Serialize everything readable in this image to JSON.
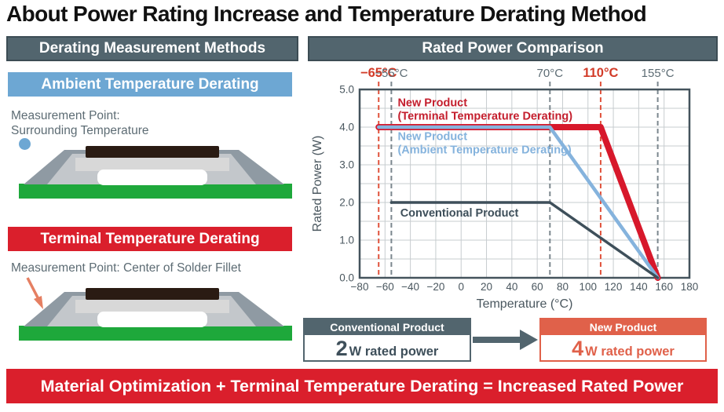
{
  "page_title": "About Power Rating Increase and Temperature Derating Method",
  "left_panel": {
    "header": "Derating Measurement Methods",
    "ambient_header": "Ambient Temperature Derating",
    "ambient_measurement_line1": "Measurement Point:",
    "ambient_measurement_line2": "Surrounding Temperature",
    "terminal_header": "Terminal Temperature Derating",
    "terminal_measurement": "Measurement Point: Center of Solder Fillet"
  },
  "right_panel": {
    "header": "Rated Power Comparison"
  },
  "chart_data": {
    "type": "line",
    "title": "Rated Power Comparison",
    "xlabel": "Temperature (°C)",
    "ylabel": "Rated Power (W)",
    "xlim": [
      -80,
      180
    ],
    "ylim": [
      0,
      5.0
    ],
    "grid": true,
    "x_ticks": [
      -80,
      -60,
      -40,
      -20,
      0,
      20,
      40,
      60,
      80,
      100,
      120,
      140,
      160,
      180
    ],
    "y_ticks": [
      0,
      1,
      2,
      3,
      4,
      5
    ],
    "y_tick_labels": [
      "0.0",
      "1.0",
      "2.0",
      "3.0",
      "4.0",
      "5.0"
    ],
    "x_grid_step": 20,
    "y_grid_step": 0.5,
    "reference_lines": [
      {
        "x": -65,
        "label": "−65°C",
        "label_color": "#d23b28",
        "line_color": "#e0523c",
        "bold": true
      },
      {
        "x": -55,
        "label": "−55°C",
        "label_color": "#5d6c74",
        "line_color": "#7b878e",
        "bold": false
      },
      {
        "x": 70,
        "label": "70°C",
        "label_color": "#5d6c74",
        "line_color": "#7b878e",
        "bold": false
      },
      {
        "x": 110,
        "label": "110°C",
        "label_color": "#d23b28",
        "line_color": "#e0523c",
        "bold": true
      },
      {
        "x": 155,
        "label": "155°C",
        "label_color": "#5d6c74",
        "line_color": "#7b878e",
        "bold": false
      }
    ],
    "series": [
      {
        "name": "New Product (Terminal Temperature Derating)",
        "color": "#d7182b",
        "width": 8,
        "points": [
          [
            -65,
            4.0
          ],
          [
            110,
            4.0
          ],
          [
            155,
            0
          ]
        ]
      },
      {
        "name": "New Product (Ambient Temperature Derating)",
        "color": "#85b3dd",
        "width": 4.5,
        "points": [
          [
            -65,
            4.0
          ],
          [
            70,
            4.0
          ],
          [
            155,
            0
          ]
        ]
      },
      {
        "name": "Conventional Product",
        "color": "#3e4f5a",
        "width": 3.5,
        "points": [
          [
            -55,
            2.0
          ],
          [
            70,
            2.0
          ],
          [
            155,
            0
          ]
        ]
      }
    ],
    "annotations": [
      {
        "lines": [
          "New Product",
          "(Terminal Temperature Derating)"
        ],
        "x": -50,
        "y": 4.55,
        "color": "#c41e2d"
      },
      {
        "lines": [
          "New Product",
          "(Ambient Temperature Derating)"
        ],
        "x": -50,
        "y": 3.66,
        "color": "#85b3dd"
      },
      {
        "lines": [
          "Conventional Product"
        ],
        "x": -48,
        "y": 1.62,
        "color": "#3e4f5a"
      }
    ]
  },
  "comparison": {
    "conventional_header": "Conventional Product",
    "conventional_value": "2",
    "conventional_unit": "W rated power",
    "new_header": "New Product",
    "new_value": "4",
    "new_unit": "W rated power"
  },
  "footer": "Material Optimization + Terminal Temperature Derating = Increased Rated Power",
  "colors": {
    "slate": "#52656e",
    "slate_dark": "#3c4c54",
    "slate_text": "#3e4f5a",
    "blue": "#6da7d3",
    "red": "#da1f2c",
    "salmon": "#e0614a",
    "green_pcb": "#1ea83b",
    "solder_gray": "#8f9aa3",
    "terminal_gray": "#c3c7cb",
    "body_gray": "#d8d8d8",
    "element_dark": "#2a1b13",
    "text_gray": "#5d6c74",
    "grid": "#c7cccf",
    "axis": "#44535c",
    "tick_text": "#4a575f",
    "arrow_salmon": "#e57f62"
  }
}
